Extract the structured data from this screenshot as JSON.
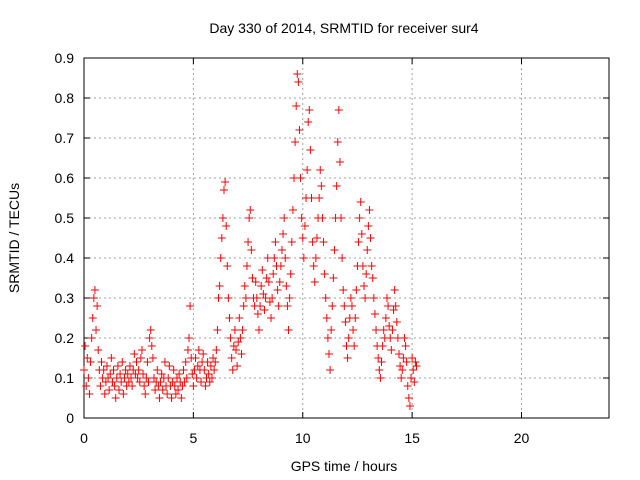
{
  "chart_data": {
    "type": "scatter",
    "title": "Day 330 of 2014, SRMTID for receiver sur4",
    "xlabel": "GPS time / hours",
    "ylabel": "SRMTID / TECUs",
    "xlim": [
      0,
      24
    ],
    "ylim": [
      0,
      0.9
    ],
    "xticks": [
      0,
      5,
      10,
      15,
      20
    ],
    "yticks": [
      0,
      0.1,
      0.2,
      0.3,
      0.4,
      0.5,
      0.6,
      0.7,
      0.8,
      0.9
    ],
    "grid": true,
    "marker": "+",
    "color": "#ff0000",
    "series": [
      {
        "name": "sur4",
        "points": [
          [
            0.0,
            0.12
          ],
          [
            0.05,
            0.18
          ],
          [
            0.1,
            0.08
          ],
          [
            0.15,
            0.15
          ],
          [
            0.2,
            0.1
          ],
          [
            0.25,
            0.06
          ],
          [
            0.3,
            0.14
          ],
          [
            0.35,
            0.2
          ],
          [
            0.4,
            0.25
          ],
          [
            0.45,
            0.3
          ],
          [
            0.5,
            0.32
          ],
          [
            0.55,
            0.22
          ],
          [
            0.6,
            0.28
          ],
          [
            0.65,
            0.17
          ],
          [
            0.7,
            0.12
          ],
          [
            0.75,
            0.08
          ],
          [
            0.8,
            0.14
          ],
          [
            0.85,
            0.1
          ],
          [
            0.9,
            0.12
          ],
          [
            0.95,
            0.06
          ],
          [
            1.0,
            0.09
          ],
          [
            1.05,
            0.13
          ],
          [
            1.1,
            0.1
          ],
          [
            1.15,
            0.07
          ],
          [
            1.2,
            0.11
          ],
          [
            1.25,
            0.15
          ],
          [
            1.3,
            0.09
          ],
          [
            1.35,
            0.12
          ],
          [
            1.4,
            0.08
          ],
          [
            1.45,
            0.05
          ],
          [
            1.5,
            0.1
          ],
          [
            1.55,
            0.13
          ],
          [
            1.6,
            0.07
          ],
          [
            1.65,
            0.11
          ],
          [
            1.7,
            0.09
          ],
          [
            1.75,
            0.14
          ],
          [
            1.8,
            0.06
          ],
          [
            1.85,
            0.1
          ],
          [
            1.9,
            0.12
          ],
          [
            1.95,
            0.08
          ],
          [
            2.0,
            0.11
          ],
          [
            2.05,
            0.09
          ],
          [
            2.1,
            0.13
          ],
          [
            2.15,
            0.1
          ],
          [
            2.2,
            0.08
          ],
          [
            2.25,
            0.12
          ],
          [
            2.3,
            0.16
          ],
          [
            2.35,
            0.11
          ],
          [
            2.4,
            0.14
          ],
          [
            2.45,
            0.1
          ],
          [
            2.5,
            0.12
          ],
          [
            2.55,
            0.09
          ],
          [
            2.6,
            0.15
          ],
          [
            2.65,
            0.17
          ],
          [
            2.7,
            0.11
          ],
          [
            2.75,
            0.08
          ],
          [
            2.8,
            0.06
          ],
          [
            2.85,
            0.1
          ],
          [
            2.9,
            0.14
          ],
          [
            2.95,
            0.09
          ],
          [
            3.0,
            0.2
          ],
          [
            3.05,
            0.22
          ],
          [
            3.1,
            0.18
          ],
          [
            3.15,
            0.15
          ],
          [
            3.2,
            0.1
          ],
          [
            3.25,
            0.07
          ],
          [
            3.3,
            0.09
          ],
          [
            3.35,
            0.12
          ],
          [
            3.4,
            0.08
          ],
          [
            3.45,
            0.05
          ],
          [
            3.5,
            0.09
          ],
          [
            3.55,
            0.11
          ],
          [
            3.6,
            0.07
          ],
          [
            3.65,
            0.1
          ],
          [
            3.7,
            0.14
          ],
          [
            3.75,
            0.08
          ],
          [
            3.8,
            0.06
          ],
          [
            3.85,
            0.1
          ],
          [
            3.9,
            0.13
          ],
          [
            3.95,
            0.08
          ],
          [
            4.0,
            0.05
          ],
          [
            4.05,
            0.09
          ],
          [
            4.1,
            0.12
          ],
          [
            4.15,
            0.08
          ],
          [
            4.2,
            0.06
          ],
          [
            4.25,
            0.1
          ],
          [
            4.3,
            0.07
          ],
          [
            4.35,
            0.11
          ],
          [
            4.4,
            0.09
          ],
          [
            4.45,
            0.05
          ],
          [
            4.5,
            0.08
          ],
          [
            4.55,
            0.12
          ],
          [
            4.6,
            0.09
          ],
          [
            4.65,
            0.14
          ],
          [
            4.7,
            0.1
          ],
          [
            4.75,
            0.17
          ],
          [
            4.8,
            0.2
          ],
          [
            4.85,
            0.28
          ],
          [
            4.9,
            0.15
          ],
          [
            4.95,
            0.11
          ],
          [
            5.0,
            0.08
          ],
          [
            5.05,
            0.12
          ],
          [
            5.1,
            0.15
          ],
          [
            5.15,
            0.1
          ],
          [
            5.2,
            0.13
          ],
          [
            5.25,
            0.17
          ],
          [
            5.3,
            0.12
          ],
          [
            5.35,
            0.09
          ],
          [
            5.4,
            0.14
          ],
          [
            5.45,
            0.16
          ],
          [
            5.5,
            0.12
          ],
          [
            5.55,
            0.08
          ],
          [
            5.6,
            0.1
          ],
          [
            5.65,
            0.14
          ],
          [
            5.7,
            0.11
          ],
          [
            5.75,
            0.09
          ],
          [
            5.8,
            0.13
          ],
          [
            5.85,
            0.1
          ],
          [
            5.9,
            0.15
          ],
          [
            5.95,
            0.12
          ],
          [
            6.0,
            0.14
          ],
          [
            6.05,
            0.17
          ],
          [
            6.1,
            0.22
          ],
          [
            6.15,
            0.3
          ],
          [
            6.2,
            0.33
          ],
          [
            6.25,
            0.4
          ],
          [
            6.3,
            0.45
          ],
          [
            6.35,
            0.5
          ],
          [
            6.4,
            0.57
          ],
          [
            6.45,
            0.59
          ],
          [
            6.5,
            0.48
          ],
          [
            6.55,
            0.38
          ],
          [
            6.6,
            0.3
          ],
          [
            6.65,
            0.25
          ],
          [
            6.7,
            0.2
          ],
          [
            6.75,
            0.15
          ],
          [
            6.8,
            0.12
          ],
          [
            6.85,
            0.18
          ],
          [
            6.9,
            0.22
          ],
          [
            6.95,
            0.17
          ],
          [
            7.0,
            0.13
          ],
          [
            7.05,
            0.19
          ],
          [
            7.1,
            0.25
          ],
          [
            7.15,
            0.2
          ],
          [
            7.2,
            0.16
          ],
          [
            7.25,
            0.22
          ],
          [
            7.3,
            0.28
          ],
          [
            7.35,
            0.33
          ],
          [
            7.4,
            0.3
          ],
          [
            7.45,
            0.38
          ],
          [
            7.5,
            0.44
          ],
          [
            7.55,
            0.5
          ],
          [
            7.6,
            0.52
          ],
          [
            7.65,
            0.42
          ],
          [
            7.7,
            0.35
          ],
          [
            7.75,
            0.3
          ],
          [
            7.8,
            0.28
          ],
          [
            7.85,
            0.34
          ],
          [
            7.9,
            0.3
          ],
          [
            7.95,
            0.26
          ],
          [
            8.0,
            0.22
          ],
          [
            8.05,
            0.28
          ],
          [
            8.1,
            0.33
          ],
          [
            8.15,
            0.37
          ],
          [
            8.2,
            0.31
          ],
          [
            8.25,
            0.27
          ],
          [
            8.3,
            0.3
          ],
          [
            8.35,
            0.35
          ],
          [
            8.4,
            0.4
          ],
          [
            8.45,
            0.34
          ],
          [
            8.5,
            0.29
          ],
          [
            8.55,
            0.25
          ],
          [
            8.6,
            0.3
          ],
          [
            8.65,
            0.36
          ],
          [
            8.7,
            0.4
          ],
          [
            8.75,
            0.44
          ],
          [
            8.8,
            0.38
          ],
          [
            8.85,
            0.32
          ],
          [
            8.9,
            0.28
          ],
          [
            8.95,
            0.34
          ],
          [
            9.0,
            0.38
          ],
          [
            9.05,
            0.42
          ],
          [
            9.1,
            0.46
          ],
          [
            9.15,
            0.5
          ],
          [
            9.2,
            0.4
          ],
          [
            9.25,
            0.33
          ],
          [
            9.3,
            0.28
          ],
          [
            9.35,
            0.22
          ],
          [
            9.4,
            0.3
          ],
          [
            9.45,
            0.36
          ],
          [
            9.5,
            0.44
          ],
          [
            9.55,
            0.52
          ],
          [
            9.6,
            0.6
          ],
          [
            9.65,
            0.69
          ],
          [
            9.7,
            0.78
          ],
          [
            9.75,
            0.86
          ],
          [
            9.8,
            0.84
          ],
          [
            9.85,
            0.72
          ],
          [
            9.9,
            0.6
          ],
          [
            9.95,
            0.5
          ],
          [
            10.0,
            0.45
          ],
          [
            10.05,
            0.4
          ],
          [
            10.1,
            0.48
          ],
          [
            10.15,
            0.55
          ],
          [
            10.2,
            0.62
          ],
          [
            10.25,
            0.74
          ],
          [
            10.3,
            0.77
          ],
          [
            10.35,
            0.67
          ],
          [
            10.4,
            0.55
          ],
          [
            10.45,
            0.44
          ],
          [
            10.5,
            0.38
          ],
          [
            10.55,
            0.34
          ],
          [
            10.6,
            0.4
          ],
          [
            10.65,
            0.45
          ],
          [
            10.7,
            0.5
          ],
          [
            10.75,
            0.55
          ],
          [
            10.8,
            0.62
          ],
          [
            10.85,
            0.58
          ],
          [
            10.9,
            0.5
          ],
          [
            10.95,
            0.44
          ],
          [
            11.0,
            0.36
          ],
          [
            11.05,
            0.3
          ],
          [
            11.1,
            0.25
          ],
          [
            11.15,
            0.2
          ],
          [
            11.2,
            0.16
          ],
          [
            11.25,
            0.12
          ],
          [
            11.3,
            0.22
          ],
          [
            11.35,
            0.28
          ],
          [
            11.4,
            0.35
          ],
          [
            11.45,
            0.42
          ],
          [
            11.5,
            0.5
          ],
          [
            11.55,
            0.58
          ],
          [
            11.6,
            0.69
          ],
          [
            11.65,
            0.77
          ],
          [
            11.7,
            0.64
          ],
          [
            11.75,
            0.5
          ],
          [
            11.8,
            0.4
          ],
          [
            11.85,
            0.32
          ],
          [
            11.9,
            0.28
          ],
          [
            11.95,
            0.24
          ],
          [
            12.0,
            0.18
          ],
          [
            12.05,
            0.15
          ],
          [
            12.1,
            0.2
          ],
          [
            12.15,
            0.25
          ],
          [
            12.2,
            0.3
          ],
          [
            12.25,
            0.28
          ],
          [
            12.3,
            0.22
          ],
          [
            12.35,
            0.18
          ],
          [
            12.4,
            0.25
          ],
          [
            12.45,
            0.32
          ],
          [
            12.5,
            0.38
          ],
          [
            12.55,
            0.44
          ],
          [
            12.6,
            0.5
          ],
          [
            12.65,
            0.54
          ],
          [
            12.7,
            0.46
          ],
          [
            12.75,
            0.38
          ],
          [
            12.8,
            0.33
          ],
          [
            12.85,
            0.3
          ],
          [
            12.9,
            0.36
          ],
          [
            12.95,
            0.42
          ],
          [
            13.0,
            0.48
          ],
          [
            13.05,
            0.52
          ],
          [
            13.1,
            0.45
          ],
          [
            13.15,
            0.38
          ],
          [
            13.2,
            0.35
          ],
          [
            13.25,
            0.3
          ],
          [
            13.3,
            0.26
          ],
          [
            13.35,
            0.22
          ],
          [
            13.4,
            0.18
          ],
          [
            13.45,
            0.15
          ],
          [
            13.5,
            0.12
          ],
          [
            13.55,
            0.1
          ],
          [
            13.6,
            0.14
          ],
          [
            13.65,
            0.18
          ],
          [
            13.7,
            0.22
          ],
          [
            13.75,
            0.2
          ],
          [
            13.8,
            0.25
          ],
          [
            13.85,
            0.3
          ],
          [
            13.9,
            0.28
          ],
          [
            13.95,
            0.23
          ],
          [
            14.0,
            0.2
          ],
          [
            14.05,
            0.17
          ],
          [
            14.1,
            0.22
          ],
          [
            14.15,
            0.27
          ],
          [
            14.2,
            0.32
          ],
          [
            14.25,
            0.28
          ],
          [
            14.3,
            0.24
          ],
          [
            14.35,
            0.2
          ],
          [
            14.4,
            0.16
          ],
          [
            14.45,
            0.13
          ],
          [
            14.5,
            0.1
          ],
          [
            14.55,
            0.12
          ],
          [
            14.6,
            0.15
          ],
          [
            14.65,
            0.2
          ],
          [
            14.7,
            0.18
          ],
          [
            14.75,
            0.14
          ],
          [
            14.8,
            0.08
          ],
          [
            14.85,
            0.05
          ],
          [
            14.9,
            0.03
          ],
          [
            14.95,
            0.1
          ],
          [
            15.0,
            0.15
          ],
          [
            15.05,
            0.12
          ],
          [
            15.1,
            0.09
          ],
          [
            15.15,
            0.14
          ],
          [
            15.2,
            0.13
          ]
        ]
      }
    ]
  }
}
